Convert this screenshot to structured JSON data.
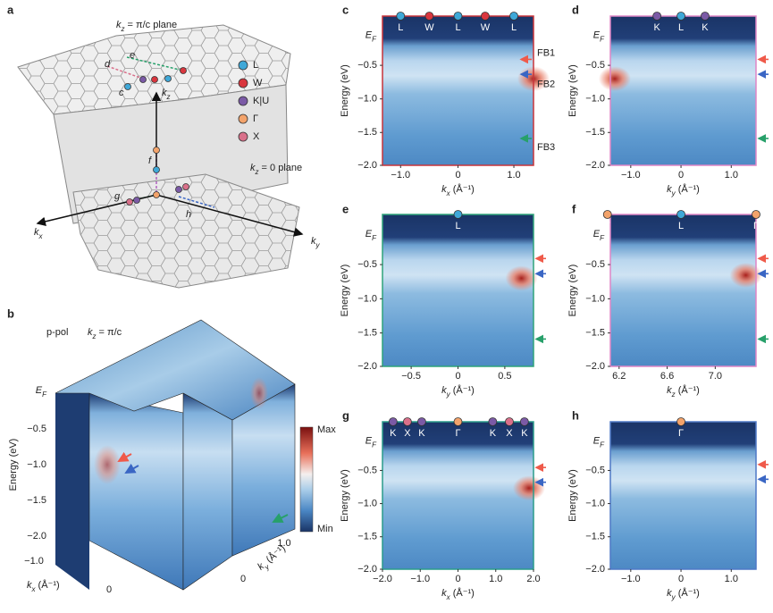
{
  "panel_labels": [
    "a",
    "b",
    "c",
    "d",
    "e",
    "f",
    "g",
    "h"
  ],
  "a": {
    "plane_top": {
      "k": "k",
      "sub": "z",
      "rest": " = π/c plane"
    },
    "plane_bottom": {
      "k": "k",
      "sub": "z",
      "rest": " = 0 plane"
    },
    "legend": [
      {
        "label": "L",
        "color": "#3fa8d8"
      },
      {
        "label": "W",
        "color": "#d9363e"
      },
      {
        "label": "K|U",
        "color": "#7b5aa6"
      },
      {
        "label": "Γ",
        "color": "#f3a36b"
      },
      {
        "label": "X",
        "color": "#d9708a"
      }
    ],
    "path_letters": [
      "c",
      "d",
      "e",
      "f",
      "g",
      "h"
    ],
    "axes": [
      {
        "k": "k",
        "sub": "x"
      },
      {
        "k": "k",
        "sub": "y"
      },
      {
        "k": "k",
        "sub": "z"
      }
    ]
  },
  "b": {
    "polarization": "p-pol",
    "plane": {
      "k": "k",
      "sub": "z",
      "rest": " = π/c"
    },
    "ef": {
      "k": "E",
      "sub": "F"
    },
    "yticks": [
      "−0.5",
      "−1.0",
      "−1.5",
      "−2.0"
    ],
    "y_label": "Energy (eV)",
    "colorbar": [
      "Max",
      "Min"
    ],
    "kx_ticks": [
      "−1.0",
      "0"
    ],
    "kx_label": {
      "k": "k",
      "sub": "x",
      "rest": " (Å⁻¹)"
    },
    "ky_ticks": [
      "1.0",
      "0"
    ],
    "ky_label": {
      "k": "k",
      "sub": "y",
      "rest": " (Å⁻¹)"
    }
  },
  "panels": {
    "c": {
      "ef": {
        "k": "E",
        "sub": "F"
      },
      "yticks": [
        "−0.5",
        "−1.0",
        "−1.5",
        "−2.0"
      ],
      "y_label": "Energy (eV)",
      "xticks": [
        "−1.0",
        "0",
        "1.0"
      ],
      "x_label": {
        "k": "k",
        "sub": "x",
        "rest": " (Å⁻¹)"
      },
      "markers": [
        {
          "label": "L",
          "color": "#3fa8d8"
        },
        {
          "label": "W",
          "color": "#d9363e"
        },
        {
          "label": "L",
          "color": "#3fa8d8"
        },
        {
          "label": "W",
          "color": "#d9363e"
        },
        {
          "label": "L",
          "color": "#3fa8d8"
        }
      ],
      "bands": [
        "FB1",
        "FB2",
        "FB3"
      ]
    },
    "d": {
      "ef": {
        "k": "E",
        "sub": "F"
      },
      "yticks": [
        "−0.5",
        "−1.0",
        "−1.5",
        "−2.0"
      ],
      "y_label": "Energy (eV)",
      "xticks": [
        "−1.0",
        "0",
        "1.0"
      ],
      "x_label": {
        "k": "k",
        "sub": "y",
        "rest": " (Å⁻¹)"
      },
      "markers": [
        {
          "label": "K",
          "color": "#7b5aa6"
        },
        {
          "label": "L",
          "color": "#3fa8d8"
        },
        {
          "label": "K",
          "color": "#7b5aa6"
        }
      ]
    },
    "e": {
      "ef": {
        "k": "E",
        "sub": "F"
      },
      "yticks": [
        "−0.5",
        "−1.0",
        "−1.5",
        "−2.0"
      ],
      "y_label": "Energy (eV)",
      "xticks": [
        "−0.5",
        "0",
        "0.5"
      ],
      "x_label": {
        "k": "k",
        "sub": "y",
        "rest": " (Å⁻¹)"
      },
      "markers": [
        {
          "label": "L",
          "color": "#3fa8d8"
        }
      ]
    },
    "f": {
      "ef": {
        "k": "E",
        "sub": "F"
      },
      "yticks": [
        "−0.5",
        "−1.0",
        "−1.5",
        "−2.0"
      ],
      "y_label": "Energy (eV)",
      "xticks": [
        "6.2",
        "6.6",
        "7.0"
      ],
      "x_label": {
        "k": "k",
        "sub": "z",
        "rest": " (Å⁻¹)"
      },
      "markers": [
        {
          "label": "Γ",
          "color": "#f3a36b"
        },
        {
          "label": "L",
          "color": "#3fa8d8"
        },
        {
          "label": "Γ",
          "color": "#f3a36b"
        }
      ]
    },
    "g": {
      "ef": {
        "k": "E",
        "sub": "F"
      },
      "yticks": [
        "−0.5",
        "−1.0",
        "−1.5",
        "−2.0"
      ],
      "y_label": "Energy (eV)",
      "xticks": [
        "−2.0",
        "−1.0",
        "0",
        "1.0",
        "2.0"
      ],
      "x_label": {
        "k": "k",
        "sub": "x",
        "rest": " (Å⁻¹)"
      },
      "markers": [
        {
          "label": "K",
          "color": "#7b5aa6"
        },
        {
          "label": "X",
          "color": "#d9708a"
        },
        {
          "label": "K",
          "color": "#7b5aa6"
        },
        {
          "label": "Γ",
          "color": "#f3a36b"
        },
        {
          "label": "K",
          "color": "#7b5aa6"
        },
        {
          "label": "X",
          "color": "#d9708a"
        },
        {
          "label": "K",
          "color": "#7b5aa6"
        }
      ]
    },
    "h": {
      "ef": {
        "k": "E",
        "sub": "F"
      },
      "yticks": [
        "−0.5",
        "−1.0",
        "−1.5",
        "−2.0"
      ],
      "y_label": "Energy (eV)",
      "xticks": [
        "−1.0",
        "0",
        "1.0"
      ],
      "x_label": {
        "k": "k",
        "sub": "y",
        "rest": " (Å⁻¹)"
      },
      "markers": [
        {
          "label": "Γ",
          "color": "#f3a36b"
        }
      ]
    }
  }
}
